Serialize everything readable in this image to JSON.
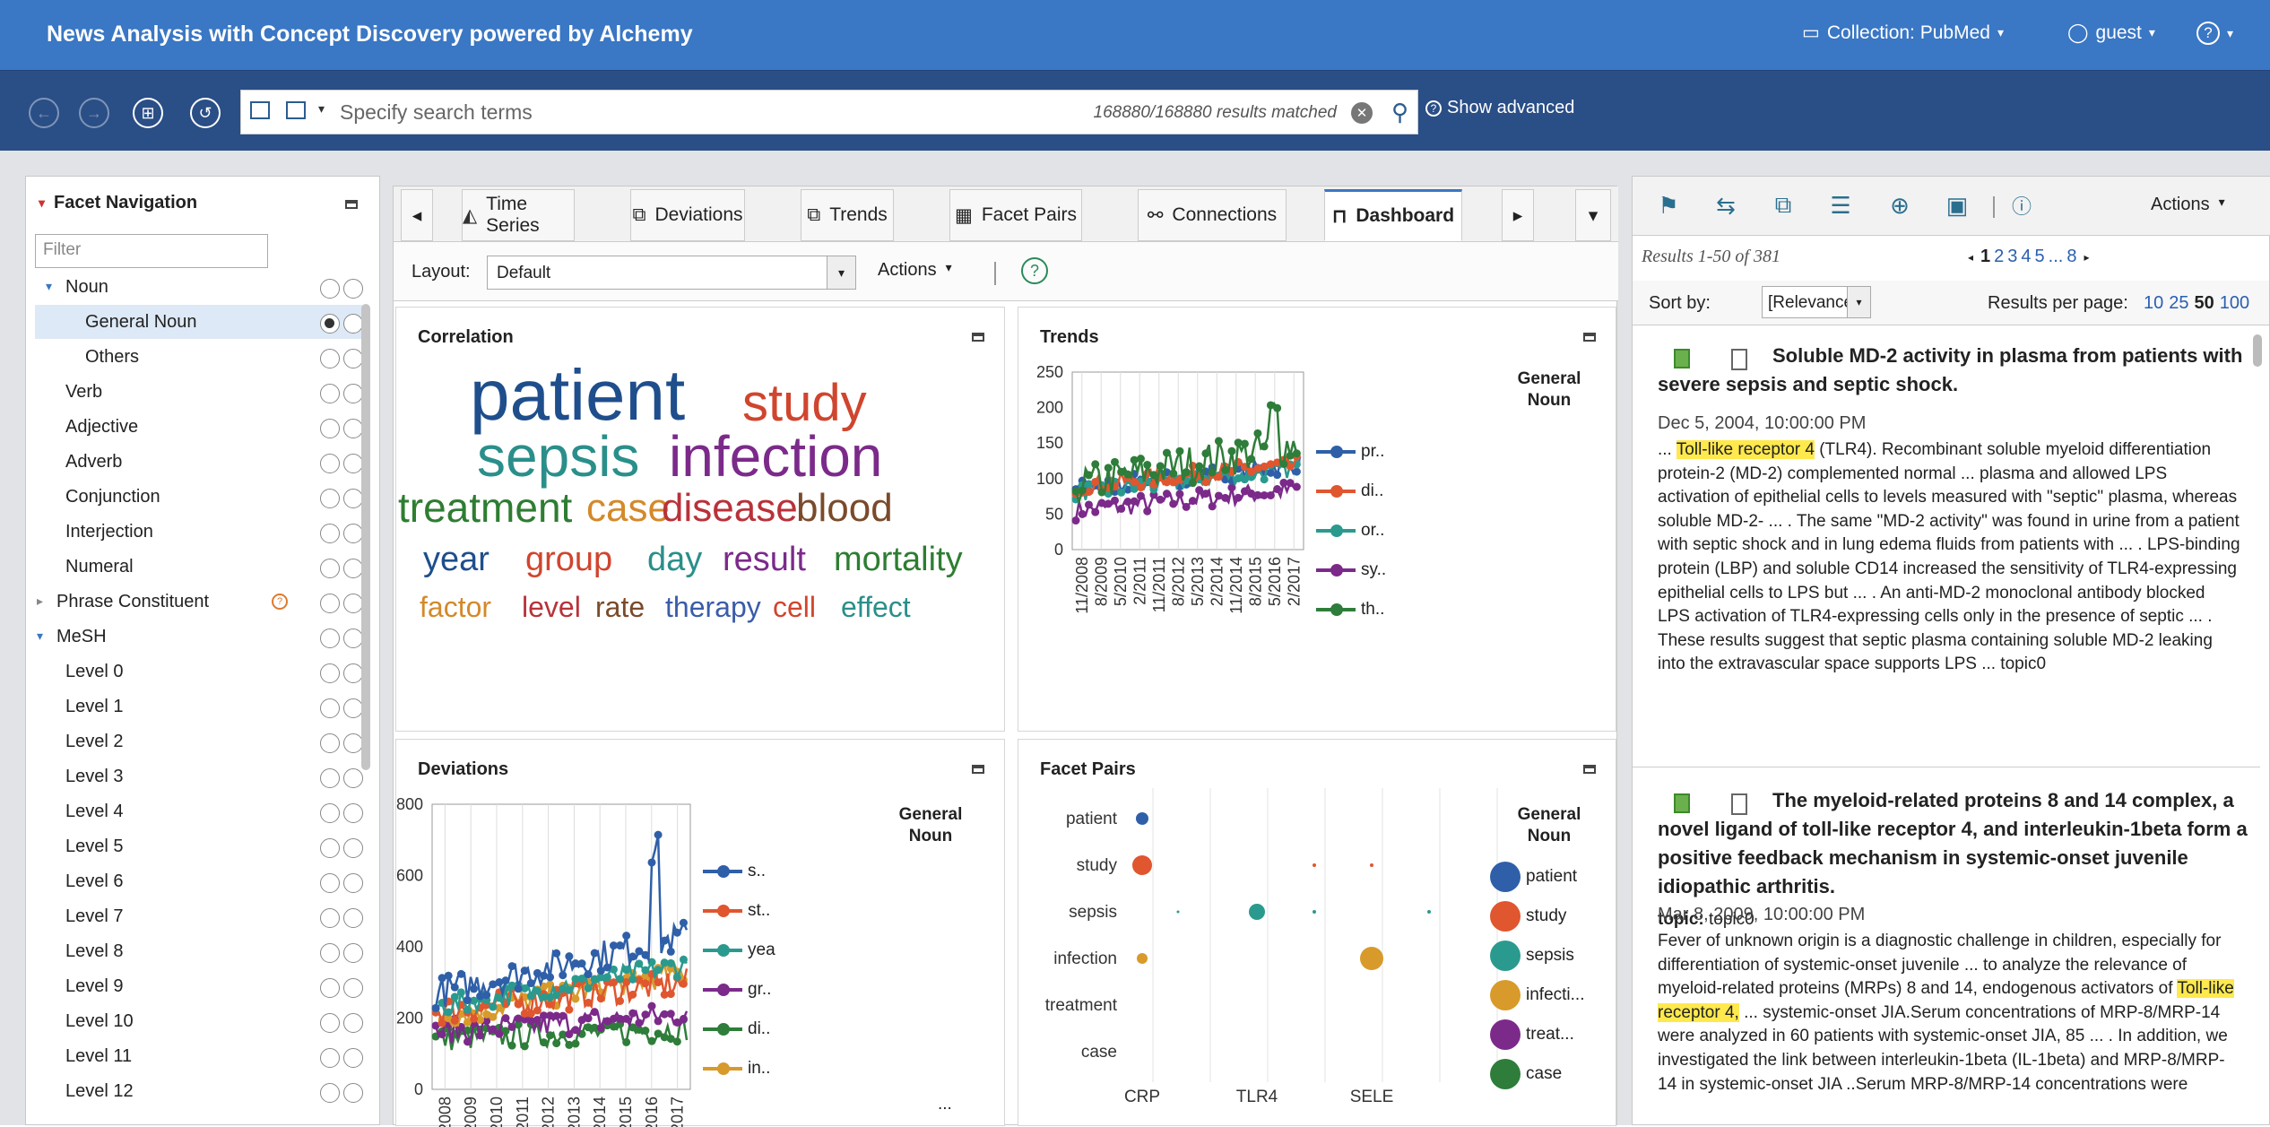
{
  "app": {
    "title": "News Analysis with Concept Discovery powered by Alchemy",
    "collection": "Collection: PubMed",
    "user": "guest",
    "help": "?"
  },
  "search": {
    "placeholder": "Specify search terms",
    "matched": "168880/168880 results matched",
    "show_advanced": "Show advanced"
  },
  "facets": {
    "header": "Facet Navigation",
    "filter_placeholder": "Filter",
    "items": [
      "Noun",
      "General Noun",
      "Others",
      "Verb",
      "Adjective",
      "Adverb",
      "Conjunction",
      "Interjection",
      "Numeral",
      "Phrase Constituent",
      "MeSH",
      "Level 0",
      "Level 1",
      "Level 2",
      "Level 3",
      "Level 4",
      "Level 5",
      "Level 6",
      "Level 7",
      "Level 8",
      "Level 9",
      "Level 10",
      "Level 11",
      "Level 12"
    ]
  },
  "tabs": [
    "Time Series",
    "Deviations",
    "Trends",
    "Facet Pairs",
    "Connections",
    "Dashboard"
  ],
  "active_tab": "Dashboard",
  "layout": {
    "label": "Layout:",
    "value": "Default",
    "actions": "Actions"
  },
  "panels": {
    "correlation": {
      "title": "Correlation",
      "words": [
        {
          "t": "patient",
          "c": "#1f4e8c"
        },
        {
          "t": "study",
          "c": "#d0452e"
        },
        {
          "t": "sepsis",
          "c": "#2a8f8a"
        },
        {
          "t": "infection",
          "c": "#7b2a8a"
        },
        {
          "t": "treatment",
          "c": "#2e7d32"
        },
        {
          "t": "case",
          "c": "#d4892a"
        },
        {
          "t": "disease",
          "c": "#b8323a"
        },
        {
          "t": "blood",
          "c": "#7a4a2a"
        },
        {
          "t": "year",
          "c": "#1f4e8c"
        },
        {
          "t": "group",
          "c": "#d0452e"
        },
        {
          "t": "day",
          "c": "#2a8f8a"
        },
        {
          "t": "result",
          "c": "#7b2a8a"
        },
        {
          "t": "mortality",
          "c": "#2e7d32"
        },
        {
          "t": "factor",
          "c": "#d4892a"
        },
        {
          "t": "level",
          "c": "#b8323a"
        },
        {
          "t": "rate",
          "c": "#7a4a2a"
        },
        {
          "t": "therapy",
          "c": "#3a5ca8"
        },
        {
          "t": "cell",
          "c": "#d0452e"
        },
        {
          "t": "effect",
          "c": "#2a8f8a"
        }
      ]
    },
    "trends": {
      "title": "Trends",
      "legend_title": "General Noun",
      "legend": [
        {
          "name": "pr..",
          "color": "#2f5fa8"
        },
        {
          "name": "di..",
          "color": "#e0562f"
        },
        {
          "name": "or..",
          "color": "#2a9a8e"
        },
        {
          "name": "sy..",
          "color": "#7b2a8a"
        },
        {
          "name": "th..",
          "color": "#2e7d3a"
        }
      ],
      "yticks": [
        "250",
        "200",
        "150",
        "100",
        "50",
        "0"
      ],
      "xticks": [
        "11/2008",
        "8/2009",
        "5/2010",
        "2/2011",
        "11/2011",
        "8/2012",
        "5/2013",
        "2/2014",
        "11/2014",
        "8/2015",
        "5/2016",
        "2/2017"
      ]
    },
    "deviations": {
      "title": "Deviations",
      "legend_title": "General Noun",
      "legend": [
        {
          "name": "s..",
          "color": "#2f5fa8"
        },
        {
          "name": "st..",
          "color": "#e0562f"
        },
        {
          "name": "yea",
          "color": "#2a9a8e"
        },
        {
          "name": "gr..",
          "color": "#7b2a8a"
        },
        {
          "name": "di..",
          "color": "#2e7d3a"
        },
        {
          "name": "in..",
          "color": "#d89a2a"
        }
      ],
      "more": "...",
      "yticks": [
        "800",
        "600",
        "400",
        "200",
        "0"
      ],
      "xticks": [
        "/2008",
        "/2009",
        "/2010",
        "/2011",
        "/2012",
        "/2013",
        "/2014",
        "/2015",
        "/2016",
        "/2017"
      ]
    },
    "facetpairs": {
      "title": "Facet Pairs",
      "legend_title": "General Noun",
      "rows": [
        "patient",
        "study",
        "sepsis",
        "infection",
        "treatment",
        "case"
      ],
      "cols": [
        "CRP",
        "TLR4",
        "SELE"
      ],
      "legend": [
        {
          "name": "patient",
          "color": "#2f5fa8"
        },
        {
          "name": "study",
          "color": "#e0562f"
        },
        {
          "name": "sepsis",
          "color": "#2a9a8e"
        },
        {
          "name": "infecti...",
          "color": "#d89a2a"
        },
        {
          "name": "treat...",
          "color": "#7b2a8a"
        },
        {
          "name": "case",
          "color": "#2e7d3a"
        }
      ]
    }
  },
  "results": {
    "actions": "Actions",
    "summary": "Results 1-50 of 381",
    "pages": [
      "1",
      "2",
      "3",
      "4",
      "5",
      "...",
      "8"
    ],
    "sortby_label": "Sort by:",
    "sortby_value": "[Relevance]",
    "per_page_label": "Results per page:",
    "per_page": [
      "10",
      "25",
      "50",
      "100"
    ],
    "docs": [
      {
        "title": "Soluble MD-2 activity in plasma from patients with severe sepsis and septic shock.",
        "date": "Dec 5, 2004, 10:00:00 PM",
        "pre": "... ",
        "hl": "Toll-like receptor 4",
        "post": " (TLR4). Recombinant soluble myeloid differentiation protein-2 (MD-2) complemented normal ... plasma and allowed LPS activation of epithelial cells to levels measured with \"septic\" plasma, whereas soluble MD-2- ... . The same \"MD-2 activity\" was found in urine from a patient with septic shock and in lung edema fluids from patients with ... . LPS-binding protein (LBP) and soluble CD14 increased the sensitivity of TLR4-expressing epithelial cells to LPS but ... . An anti-MD-2 monoclonal antibody blocked LPS activation of TLR4-expressing cells only in the presence of septic ... . These results suggest that septic plasma containing soluble MD-2 leaking into the extravascular space supports LPS ... topic0",
        "topic_label": "topic:",
        "topic": "topic0"
      },
      {
        "title": "The myeloid-related proteins 8 and 14 complex, a novel ligand of toll-like receptor 4, and interleukin-1beta form a positive feedback mechanism in systemic-onset juvenile idiopathic arthritis.",
        "date": "Mar 8, 2009, 10:00:00 PM",
        "pre": "Fever of unknown origin is a diagnostic challenge in children, especially for differentiation of systemic-onset juvenile ... to analyze the relevance of myeloid-related proteins (MRPs) 8 and 14, endogenous activators of ",
        "hl": "Toll-like receptor 4,",
        "post": " ... systemic-onset JIA.Serum concentrations of MRP-8/MRP-14 were analyzed in 60 patients with systemic-onset JIA, 85 ... . In addition, we investigated the link between interleukin-1beta (IL-1beta) and MRP-8/MRP-14 in systemic-onset JIA ..Serum MRP-8/MRP-14 concentrations were"
      }
    ]
  }
}
